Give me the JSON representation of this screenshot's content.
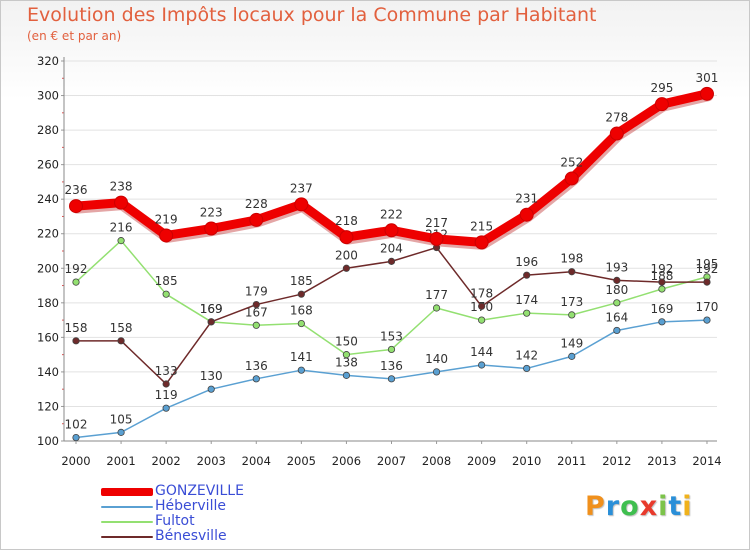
{
  "page": {
    "title": "Evolution des Impôts locaux pour la Commune par Habitant",
    "subtitle": "(en € et par an)"
  },
  "brand": {
    "text": "Proxiti",
    "colors": [
      "#f0901c",
      "#2a8fd8",
      "#3fbf4f",
      "#e83a2c",
      "#7cc34a",
      "#2a8fd8",
      "#f0b21c"
    ]
  },
  "chart_data": {
    "type": "line",
    "title": "Evolution des Impôts locaux pour la Commune par Habitant",
    "subtitle": "(en € et par an)",
    "xlabel": "",
    "ylabel": "",
    "ylim": [
      100,
      320
    ],
    "y_ticks": [
      100,
      120,
      140,
      160,
      180,
      200,
      220,
      240,
      260,
      280,
      300,
      320
    ],
    "grid": true,
    "legend_position": "bottom-left",
    "x": [
      "2000",
      "2001",
      "2002",
      "2003",
      "2004",
      "2005",
      "2006",
      "2007",
      "2008",
      "2009",
      "2010",
      "2011",
      "2012",
      "2013",
      "2014"
    ],
    "series": [
      {
        "name": "GONZEVILLE",
        "color": "#ee0000",
        "values": [
          236,
          238,
          219,
          223,
          228,
          237,
          218,
          222,
          217,
          215,
          231,
          252,
          278,
          295,
          301
        ]
      },
      {
        "name": "Héberville",
        "color": "#5aa0d2",
        "values": [
          102,
          105,
          119,
          130,
          136,
          141,
          138,
          136,
          140,
          144,
          142,
          149,
          164,
          169,
          170
        ]
      },
      {
        "name": "Fultot",
        "color": "#93e071",
        "values": [
          192,
          216,
          185,
          169,
          167,
          168,
          150,
          153,
          177,
          170,
          174,
          173,
          180,
          188,
          195
        ]
      },
      {
        "name": "Bénesville",
        "color": "#6e2a2a",
        "values": [
          158,
          158,
          133,
          169,
          179,
          185,
          200,
          204,
          212,
          178,
          196,
          198,
          193,
          192,
          192
        ]
      }
    ]
  }
}
